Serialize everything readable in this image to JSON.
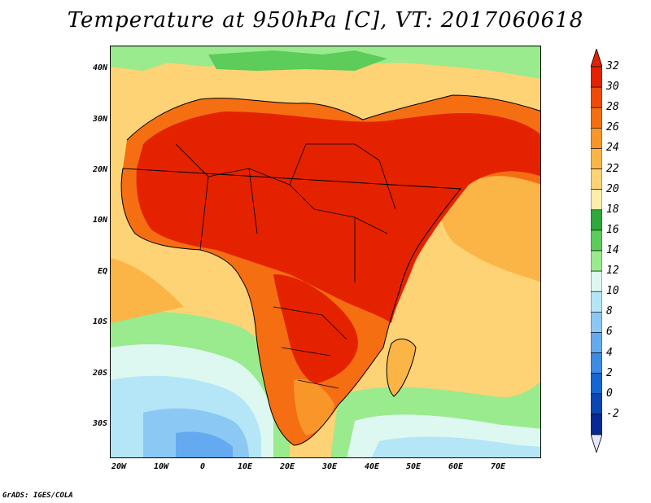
{
  "title": "Temperature at 950hPa [C], VT: 2017060618",
  "lat_labels": [
    "40N",
    "30N",
    "20N",
    "10N",
    "EQ",
    "10S",
    "20S",
    "30S"
  ],
  "lon_labels": [
    "20W",
    "10W",
    "0",
    "10E",
    "20E",
    "30E",
    "40E",
    "50E",
    "60E",
    "70E"
  ],
  "colorbar": {
    "labels": [
      "32",
      "30",
      "28",
      "26",
      "24",
      "22",
      "20",
      "18",
      "16",
      "14",
      "12",
      "10",
      "8",
      "6",
      "4",
      "2",
      "0",
      "-2"
    ],
    "colors": [
      "#e52200",
      "#ef4a0a",
      "#f56e12",
      "#f9962a",
      "#fbb547",
      "#fdd375",
      "#fdeeaa",
      "#2fa83c",
      "#5ccc5a",
      "#9aea8e",
      "#ddf8f0",
      "#b4e6f8",
      "#8cc8f4",
      "#64aaf0",
      "#3c8ce6",
      "#1466d2",
      "#0a46b4",
      "#082896"
    ]
  },
  "credit": "GrADS: IGES/COLA"
}
